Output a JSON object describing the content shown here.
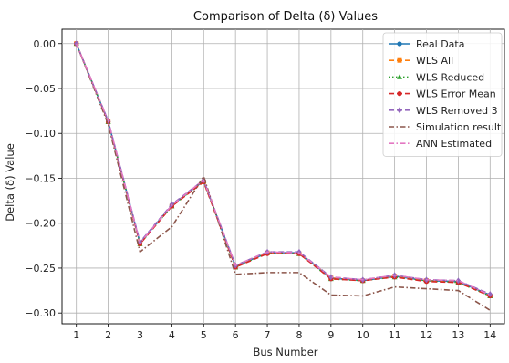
{
  "chart_data": {
    "type": "line",
    "title": "Comparison of Delta (δ) Values",
    "xlabel": "Bus Number",
    "ylabel": "Delta (δ) Value",
    "x": [
      1,
      2,
      3,
      4,
      5,
      6,
      7,
      8,
      9,
      10,
      11,
      12,
      13,
      14
    ],
    "xlim": [
      0.55,
      14.45
    ],
    "ylim": [
      -0.312,
      0.016
    ],
    "yticks": [
      0.0,
      -0.05,
      -0.1,
      -0.15,
      -0.2,
      -0.25,
      -0.3
    ],
    "ytick_labels": [
      "0.00",
      "−0.05",
      "−0.10",
      "−0.15",
      "−0.20",
      "−0.25",
      "−0.30"
    ],
    "grid": true,
    "legend_position": "top-right",
    "series": [
      {
        "name": "Real Data",
        "color": "#1f77b4",
        "dash": "solid",
        "marker": "circle",
        "values": [
          0.0,
          -0.087,
          -0.222,
          -0.18,
          -0.153,
          -0.248,
          -0.233,
          -0.233,
          -0.261,
          -0.264,
          -0.259,
          -0.264,
          -0.265,
          -0.28
        ]
      },
      {
        "name": "WLS All",
        "color": "#ff7f0e",
        "dash": "dashed",
        "marker": "square",
        "values": [
          0.0,
          -0.087,
          -0.223,
          -0.181,
          -0.154,
          -0.249,
          -0.233,
          -0.234,
          -0.261,
          -0.264,
          -0.259,
          -0.264,
          -0.266,
          -0.281
        ]
      },
      {
        "name": "WLS Reduced",
        "color": "#2ca02c",
        "dash": "dotted",
        "marker": "triangle",
        "values": [
          0.0,
          -0.087,
          -0.223,
          -0.181,
          -0.153,
          -0.249,
          -0.233,
          -0.234,
          -0.262,
          -0.264,
          -0.26,
          -0.264,
          -0.266,
          -0.281
        ]
      },
      {
        "name": "WLS Error Mean",
        "color": "#d62728",
        "dash": "dashed",
        "marker": "circle",
        "values": [
          0.0,
          -0.087,
          -0.223,
          -0.181,
          -0.154,
          -0.249,
          -0.234,
          -0.234,
          -0.262,
          -0.264,
          -0.26,
          -0.265,
          -0.266,
          -0.281
        ]
      },
      {
        "name": "WLS Removed 3",
        "color": "#9467bd",
        "dash": "dashed",
        "marker": "diamond",
        "values": [
          0.0,
          -0.086,
          -0.221,
          -0.179,
          -0.152,
          -0.247,
          -0.232,
          -0.232,
          -0.26,
          -0.263,
          -0.258,
          -0.263,
          -0.264,
          -0.279
        ]
      },
      {
        "name": "Simulation result",
        "color": "#8c564b",
        "dash": "dashdot",
        "marker": "none",
        "values": [
          0.0,
          -0.09,
          -0.232,
          -0.204,
          -0.148,
          -0.257,
          -0.255,
          -0.255,
          -0.28,
          -0.281,
          -0.271,
          -0.273,
          -0.275,
          -0.297
        ]
      },
      {
        "name": "ANN Estimated",
        "color": "#e377c2",
        "dash": "dashdot",
        "marker": "none",
        "values": [
          0.0,
          -0.086,
          -0.222,
          -0.18,
          -0.152,
          -0.247,
          -0.232,
          -0.233,
          -0.26,
          -0.263,
          -0.258,
          -0.263,
          -0.264,
          -0.28
        ]
      }
    ]
  }
}
